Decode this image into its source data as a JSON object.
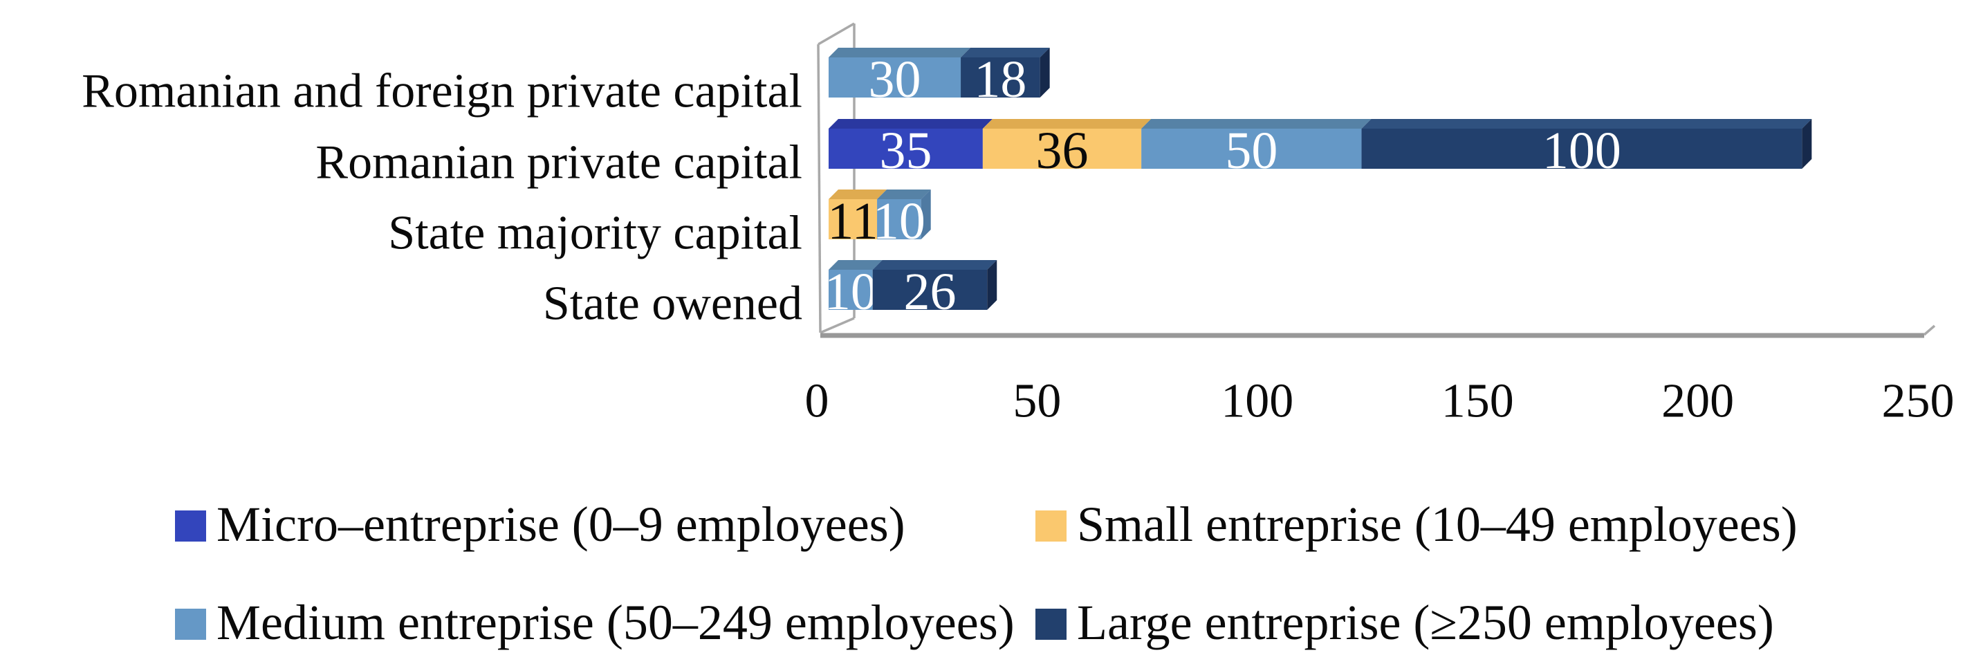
{
  "figure": {
    "background": "#ffffff",
    "text_color": "#0a0a0a"
  },
  "axis": {
    "wall_line_color": "#a9a9a9",
    "floor_line_color": "#989898",
    "tick_labels": [
      "0",
      "50",
      "100",
      "150",
      "200",
      "250"
    ]
  },
  "chart_data": {
    "type": "bar",
    "orientation": "horizontal",
    "stacked": true,
    "effect": "3d",
    "title": "",
    "xlabel": "",
    "ylabel": "",
    "xlim": [
      0,
      250
    ],
    "xticks": [
      0,
      50,
      100,
      150,
      200,
      250
    ],
    "grid": false,
    "legend_position": "bottom",
    "categories": [
      "Romanian and foreign private capital",
      "Romanian private capital",
      "State majority capital",
      "State owened"
    ],
    "series": [
      {
        "name": "Micro–entreprise (0–9 employees)",
        "color": "#3345bc",
        "top_color": "#2a38a0",
        "side_color": "#232e85",
        "label_color": "#ffffff",
        "values": [
          0,
          35,
          0,
          0
        ]
      },
      {
        "name": "Small entreprise (10–49 employees)",
        "color": "#fac86e",
        "top_color": "#dfab50",
        "side_color": "#c89a45",
        "label_color": "#0a0a0a",
        "values": [
          0,
          36,
          11,
          0
        ]
      },
      {
        "name": "Medium entreprise (50–249 employees)",
        "color": "#6598c6",
        "top_color": "#5682a6",
        "side_color": "#4f7aa2",
        "label_color": "#ffffff",
        "values": [
          30,
          50,
          10,
          10
        ]
      },
      {
        "name": "Large entreprise (≥250 employees)",
        "color": "#22406d",
        "top_color": "#2f517f",
        "side_color": "#16294b",
        "label_color": "#ffffff",
        "values": [
          18,
          100,
          0,
          26
        ]
      }
    ]
  }
}
